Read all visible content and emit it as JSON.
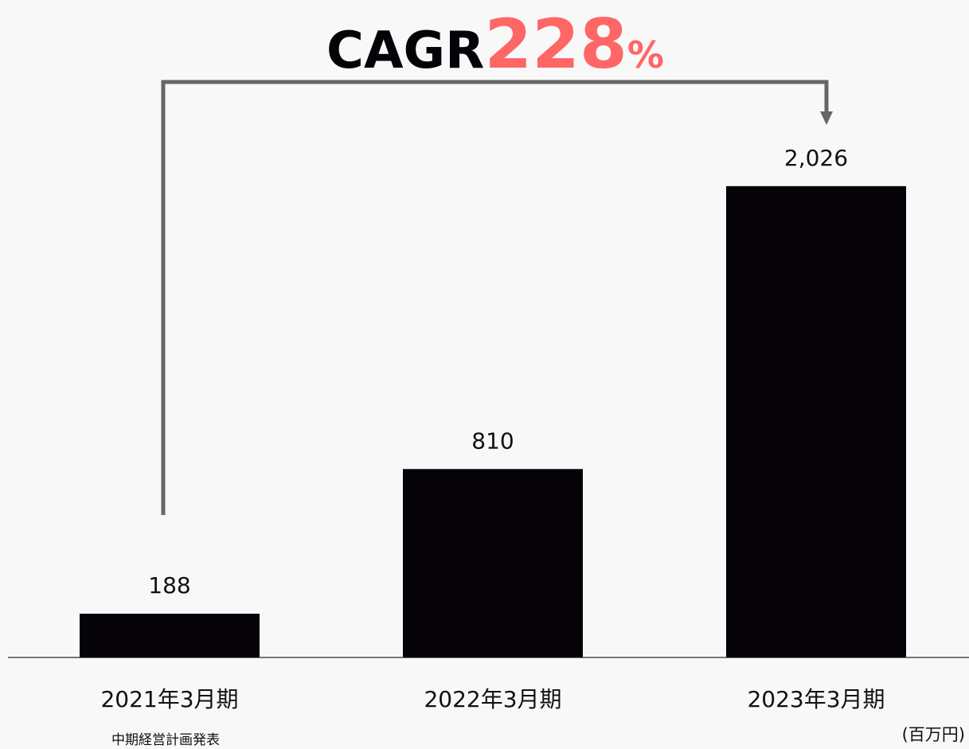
{
  "chart_data": {
    "type": "bar",
    "title": "CAGR",
    "title_highlight": "228",
    "title_unit": "%",
    "categories": [
      "2021年3月期",
      "2022年3月期",
      "2023年3月期"
    ],
    "values": [
      188,
      810,
      2026
    ],
    "value_labels": [
      "188",
      "810",
      "2,026"
    ],
    "color": "#050308",
    "highlight_color": "#ff6666",
    "ylim": [
      0,
      2200
    ],
    "note": "中期経営計画発表",
    "unit_label": "(百万円)"
  }
}
